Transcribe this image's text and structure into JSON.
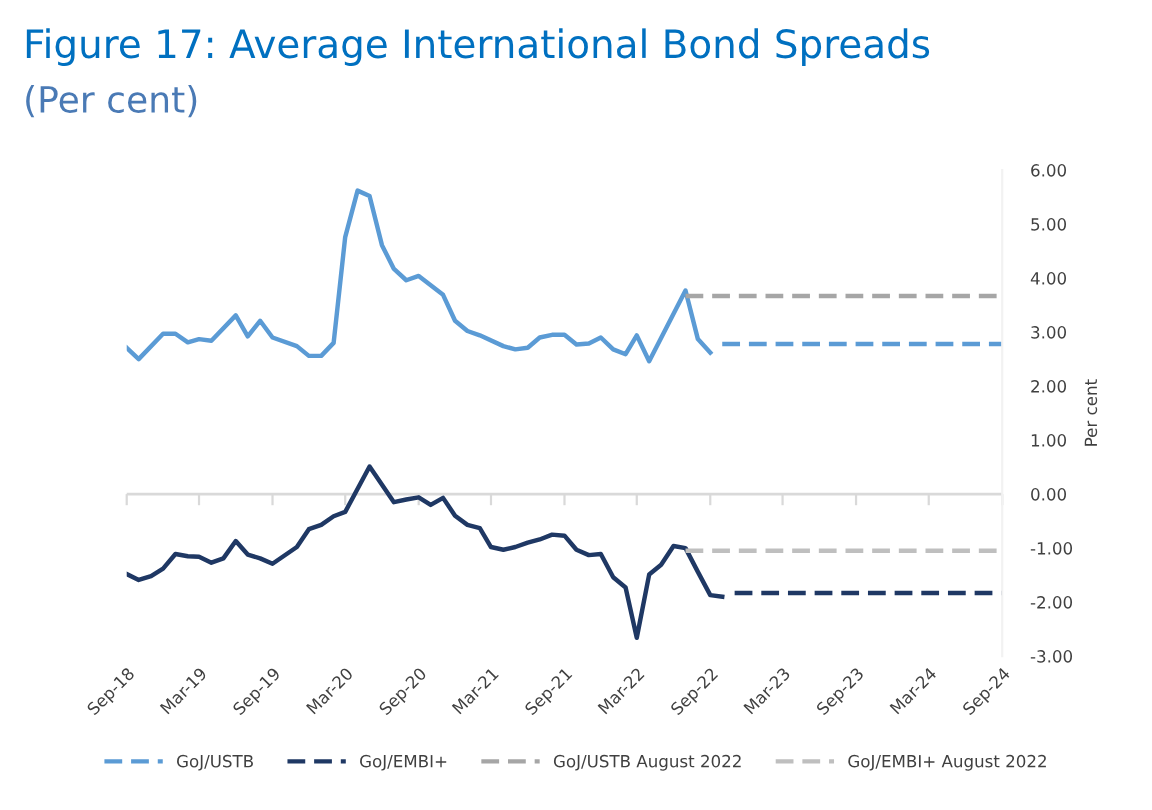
{
  "chart_data": {
    "type": "line",
    "title": "Figure 17: Average International Bond Spreads",
    "subtitle": "(Per cent)",
    "ylabel": "Per cent",
    "ylim": [
      -3,
      6
    ],
    "yticks": [
      {
        "value": -3,
        "label": "-3.00"
      },
      {
        "value": -2,
        "label": "-2.00"
      },
      {
        "value": -1,
        "label": "-1.00"
      },
      {
        "value": 0,
        "label": "0.00"
      },
      {
        "value": 1,
        "label": "1.00"
      },
      {
        "value": 2,
        "label": "2.00"
      },
      {
        "value": 3,
        "label": "3.00"
      },
      {
        "value": 4,
        "label": "4.00"
      },
      {
        "value": 5,
        "label": "5.00"
      },
      {
        "value": 6,
        "label": "6.00"
      }
    ],
    "xlim": [
      "2018-09-01",
      "2024-09-01"
    ],
    "xticks": [
      {
        "value": "2018-09-01",
        "label": "Sep-18"
      },
      {
        "value": "2019-03-01",
        "label": "Mar-19"
      },
      {
        "value": "2019-09-01",
        "label": "Sep-19"
      },
      {
        "value": "2020-03-01",
        "label": "Mar-20"
      },
      {
        "value": "2020-09-01",
        "label": "Sep-20"
      },
      {
        "value": "2021-03-01",
        "label": "Mar-21"
      },
      {
        "value": "2021-09-01",
        "label": "Sep-21"
      },
      {
        "value": "2022-03-01",
        "label": "Mar-22"
      },
      {
        "value": "2022-09-01",
        "label": "Sep-22"
      },
      {
        "value": "2023-03-01",
        "label": "Mar-23"
      },
      {
        "value": "2023-09-01",
        "label": "Sep-23"
      },
      {
        "value": "2024-03-01",
        "label": "Mar-24"
      },
      {
        "value": "2024-09-01",
        "label": "Sep-24"
      }
    ],
    "grid": false,
    "ref_lines": [
      {
        "axis": "y",
        "value": 0,
        "color": "#d9d9d9",
        "line_style": "solid"
      }
    ],
    "legend": "bottom",
    "marker": "none",
    "series": [
      {
        "color": "#5b9bd5",
        "line_style": "solid",
        "x": [
          "2018-09-01",
          "2018-10-01",
          "2018-12-01",
          "2019-01-01",
          "2019-02-01",
          "2019-03-01",
          "2019-04-01",
          "2019-06-01",
          "2019-07-01",
          "2019-08-01",
          "2019-09-01",
          "2019-11-01",
          "2019-12-01",
          "2020-01-01",
          "2020-02-01",
          "2020-03-01",
          "2020-04-01",
          "2020-05-01",
          "2020-06-01",
          "2020-07-01",
          "2020-08-01",
          "2020-09-01",
          "2020-11-01",
          "2020-12-01",
          "2021-01-01",
          "2021-02-01",
          "2021-04-01",
          "2021-05-01",
          "2021-06-01",
          "2021-07-01",
          "2021-08-01",
          "2021-09-01",
          "2021-10-01",
          "2021-11-01",
          "2021-12-01",
          "2022-01-01",
          "2022-02-01",
          "2022-03-01",
          "2022-04-01",
          "2022-07-01",
          "2022-08-01",
          "2022-09-01"
        ],
        "values": [
          2.71,
          2.5,
          2.97,
          2.97,
          2.81,
          2.87,
          2.84,
          3.31,
          2.92,
          3.21,
          2.9,
          2.74,
          2.56,
          2.56,
          2.8,
          4.76,
          5.62,
          5.52,
          4.61,
          4.17,
          3.96,
          4.04,
          3.69,
          3.21,
          3.02,
          2.94,
          2.74,
          2.68,
          2.71,
          2.9,
          2.95,
          2.95,
          2.77,
          2.79,
          2.9,
          2.68,
          2.59,
          2.94,
          2.46,
          3.77,
          2.87,
          2.62
        ]
      },
      {
        "color": "#1f3864",
        "line_style": "solid",
        "x": [
          "2018-09-01",
          "2018-10-01",
          "2018-11-01",
          "2018-12-01",
          "2019-01-01",
          "2019-02-01",
          "2019-03-01",
          "2019-04-01",
          "2019-05-01",
          "2019-06-01",
          "2019-07-01",
          "2019-08-01",
          "2019-09-01",
          "2019-11-01",
          "2019-12-01",
          "2020-01-01",
          "2020-02-01",
          "2020-03-01",
          "2020-05-01",
          "2020-07-01",
          "2020-08-01",
          "2020-09-01",
          "2020-10-01",
          "2020-11-01",
          "2020-12-01",
          "2021-01-01",
          "2021-02-01",
          "2021-03-01",
          "2021-04-01",
          "2021-05-01",
          "2021-06-01",
          "2021-07-01",
          "2021-08-01",
          "2021-09-01",
          "2021-10-01",
          "2021-11-01",
          "2021-12-01",
          "2022-01-01",
          "2022-02-01",
          "2022-03-01",
          "2022-04-01",
          "2022-05-01",
          "2022-06-01",
          "2022-07-01",
          "2022-08-01",
          "2022-09-01",
          "2022-10-01"
        ],
        "values": [
          -1.48,
          -1.59,
          -1.52,
          -1.38,
          -1.11,
          -1.15,
          -1.16,
          -1.27,
          -1.19,
          -0.87,
          -1.12,
          -1.19,
          -1.29,
          -0.98,
          -0.65,
          -0.57,
          -0.41,
          -0.33,
          0.51,
          -0.15,
          -0.1,
          -0.06,
          -0.2,
          -0.07,
          -0.4,
          -0.57,
          -0.63,
          -0.98,
          -1.03,
          -0.98,
          -0.9,
          -0.84,
          -0.75,
          -0.77,
          -1.03,
          -1.13,
          -1.11,
          -1.54,
          -1.73,
          -2.66,
          -1.49,
          -1.31,
          -0.96,
          -1.0,
          -1.44,
          -1.87,
          -1.9
        ]
      },
      {
        "name": "GoJ/USTB",
        "color": "#5b9bd5",
        "line_style": "dashed",
        "x": [
          "2022-10-01",
          "2024-09-01"
        ],
        "values": [
          2.78,
          2.78
        ]
      },
      {
        "name": "GoJ/EMBI+",
        "color": "#1f3864",
        "line_style": "dashed",
        "x": [
          "2022-11-01",
          "2024-09-01"
        ],
        "values": [
          -1.83,
          -1.83
        ]
      },
      {
        "name": "GoJ/USTB August 2022",
        "color": "#a6a6a6",
        "line_style": "dashed",
        "x": [
          "2022-07-01",
          "2024-09-01"
        ],
        "values": [
          3.67,
          3.67
        ]
      },
      {
        "name": "GoJ/EMBI+ August 2022",
        "color": "#bfbfbf",
        "line_style": "dashed",
        "x": [
          "2022-07-01",
          "2024-09-01"
        ],
        "values": [
          -1.05,
          -1.05
        ]
      }
    ]
  }
}
